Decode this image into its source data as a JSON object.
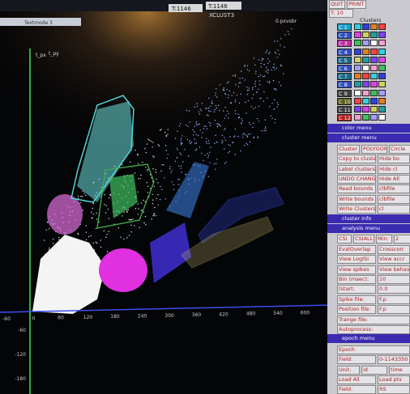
{
  "top_bar": {
    "window1": "Textmode 3",
    "time1": "T:1146",
    "app_title": "XCLUST3",
    "time2": "T:1146"
  },
  "plot": {
    "x_label": "t_px",
    "y_label": "t_py",
    "corner_label": "0.pxvsbr",
    "x_ticks": [
      -60,
      0,
      60,
      120,
      180,
      240,
      300,
      360,
      420,
      480,
      540,
      600,
      660
    ],
    "y_ticks": [
      -60,
      -120,
      -180
    ]
  },
  "panel": {
    "quit": "QUIT",
    "print": "PRINT",
    "t": "T: 10",
    "clusters_title": "Clusters",
    "clusters": [
      "C 1",
      "C 2",
      "C 3",
      "C 4",
      "C 5",
      "C 6",
      "C 7",
      "C 8",
      "C 9",
      "C 10",
      "C 11",
      "C 12"
    ],
    "rows": [
      "color menu",
      "cluster menu",
      [
        "Cluster",
        "POLYGON",
        "Circle"
      ],
      [
        "Copy to cluster",
        "Hide bo"
      ],
      [
        "Label clusters",
        "Hide cl"
      ],
      [
        "UNDO CHANGE",
        "Hide All"
      ],
      [
        "Read bounds from:",
        "clbfile"
      ],
      [
        "Write bounds to:",
        "clbfile"
      ],
      [
        "Write Clusters to:",
        "cl"
      ],
      "cluster info",
      "analysis menu",
      [
        "CSI",
        "CSIALL",
        "Min:",
        "2"
      ],
      [
        "EvalOverlap",
        "Crosscorr"
      ],
      [
        "View LogISI",
        "View accr"
      ],
      [
        "View spikes",
        "View behav"
      ],
      [
        "Bin (msec):",
        "10"
      ],
      [
        "tstart:",
        "0.0"
      ],
      [
        "Spike file:",
        "F.p"
      ],
      [
        "Position file:",
        "F.p"
      ],
      [
        "Trange file:"
      ],
      [
        "Autoprocess:"
      ],
      "epoch menu",
      [
        "Epoch"
      ],
      [
        "Field:",
        "0-1143350"
      ],
      [
        "Unit:",
        "id",
        "time"
      ],
      [
        "Load All",
        "Load pts"
      ],
      [
        "Field:",
        "RS"
      ]
    ]
  }
}
